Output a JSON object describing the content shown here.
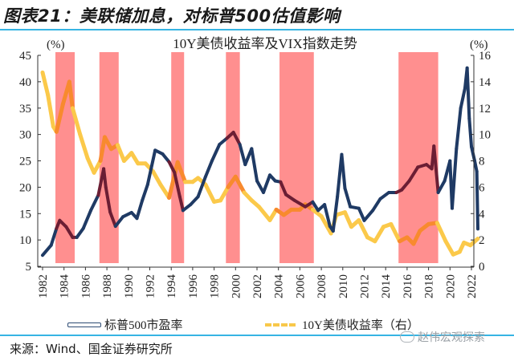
{
  "figure": {
    "title": "图表21：美联储加息，对标普500估值影响",
    "source": "来源：Wind、国金证券研究所",
    "watermark": "赵伟宏观探索"
  },
  "colors": {
    "pe_line": "#1f3a64",
    "pe_in_band": "#6b1e34",
    "yield_line": "#fbc94a",
    "yield_in_band": "#f88a2e",
    "hike_band": "#ff8f8f",
    "rule": "#36b4e3"
  },
  "chart_data": {
    "type": "line",
    "title": "10Y美债收益率及VIX指数走势",
    "left_axis": {
      "label": "(%)",
      "ylim": [
        5,
        45
      ],
      "ticks": [
        5,
        10,
        15,
        20,
        25,
        30,
        35,
        40,
        45
      ]
    },
    "right_axis": {
      "label": "(%)",
      "ylim": [
        0,
        16
      ],
      "ticks": [
        0,
        2,
        4,
        6,
        8,
        10,
        12,
        14,
        16
      ]
    },
    "x_axis": {
      "xlim": [
        1982,
        2022
      ],
      "ticks": [
        1982,
        1984,
        1986,
        1988,
        1990,
        1992,
        1994,
        1996,
        1998,
        2000,
        2002,
        2004,
        2006,
        2008,
        2010,
        2012,
        2014,
        2016,
        2018,
        2020,
        2022
      ]
    },
    "legend": {
      "placement": "bottom",
      "items": [
        "标普500市盈率",
        "10Y美债收益率（右）"
      ]
    },
    "hike_periods": [
      [
        1983.2,
        1985.0
      ],
      [
        1987.3,
        1989.1
      ],
      [
        1994.0,
        1995.2
      ],
      [
        1999.1,
        2000.4
      ],
      [
        2004.1,
        2007.3
      ],
      [
        2015.2,
        2018.9
      ]
    ],
    "series": [
      {
        "name": "标普500市盈率",
        "axis": "left",
        "points": [
          [
            1982.0,
            7.1
          ],
          [
            1982.8,
            9.0
          ],
          [
            1983.3,
            12.2
          ],
          [
            1983.6,
            13.7
          ],
          [
            1984.2,
            12.5
          ],
          [
            1984.8,
            10.5
          ],
          [
            1985.2,
            10.5
          ],
          [
            1985.8,
            12.2
          ],
          [
            1986.5,
            15.6
          ],
          [
            1987.2,
            18.5
          ],
          [
            1987.7,
            23.5
          ],
          [
            1987.9,
            20.0
          ],
          [
            1988.3,
            15.3
          ],
          [
            1988.8,
            12.6
          ],
          [
            1989.5,
            14.4
          ],
          [
            1990.3,
            15.2
          ],
          [
            1990.8,
            14.1
          ],
          [
            1991.3,
            17.5
          ],
          [
            1991.8,
            20.5
          ],
          [
            1992.5,
            27.0
          ],
          [
            1993.2,
            26.3
          ],
          [
            1993.8,
            24.8
          ],
          [
            1994.3,
            22.8
          ],
          [
            1994.8,
            18.2
          ],
          [
            1995.1,
            15.6
          ],
          [
            1995.8,
            16.7
          ],
          [
            1996.5,
            18.2
          ],
          [
            1997.2,
            22.0
          ],
          [
            1997.8,
            25.0
          ],
          [
            1998.5,
            28.1
          ],
          [
            1999.2,
            29.3
          ],
          [
            1999.8,
            30.4
          ],
          [
            2000.4,
            28.1
          ],
          [
            2000.9,
            24.3
          ],
          [
            2001.5,
            27.3
          ],
          [
            2002.0,
            21.2
          ],
          [
            2002.6,
            19.0
          ],
          [
            2003.2,
            22.3
          ],
          [
            2003.7,
            21.2
          ],
          [
            2004.2,
            21.0
          ],
          [
            2004.7,
            18.6
          ],
          [
            2005.5,
            17.5
          ],
          [
            2006.5,
            16.3
          ],
          [
            2007.2,
            17.2
          ],
          [
            2007.7,
            15.6
          ],
          [
            2008.3,
            16.7
          ],
          [
            2008.8,
            12.6
          ],
          [
            2009.1,
            11.7
          ],
          [
            2009.5,
            18.2
          ],
          [
            2009.9,
            26.2
          ],
          [
            2010.2,
            19.8
          ],
          [
            2010.7,
            16.3
          ],
          [
            2011.5,
            16.0
          ],
          [
            2012.0,
            13.7
          ],
          [
            2012.8,
            15.6
          ],
          [
            2013.5,
            17.8
          ],
          [
            2014.3,
            19.0
          ],
          [
            2015.0,
            19.0
          ],
          [
            2015.5,
            19.5
          ],
          [
            2016.2,
            21.2
          ],
          [
            2017.0,
            23.8
          ],
          [
            2017.8,
            24.3
          ],
          [
            2018.3,
            23.5
          ],
          [
            2018.5,
            27.8
          ],
          [
            2018.9,
            19.0
          ],
          [
            2019.5,
            21.2
          ],
          [
            2020.0,
            25.0
          ],
          [
            2020.2,
            16.0
          ],
          [
            2020.6,
            27.3
          ],
          [
            2021.0,
            35.0
          ],
          [
            2021.4,
            38.8
          ],
          [
            2021.6,
            42.6
          ],
          [
            2021.8,
            33.0
          ],
          [
            2022.0,
            27.7
          ],
          [
            2022.3,
            25.0
          ],
          [
            2022.5,
            23.0
          ],
          [
            2022.6,
            12.1
          ]
        ]
      },
      {
        "name": "10Y美债收益率（右）",
        "axis": "right",
        "points": [
          [
            1982.0,
            14.7
          ],
          [
            1982.5,
            13.0
          ],
          [
            1983.0,
            10.6
          ],
          [
            1983.3,
            10.2
          ],
          [
            1983.9,
            12.3
          ],
          [
            1984.5,
            14.0
          ],
          [
            1984.8,
            12.0
          ],
          [
            1985.5,
            10.0
          ],
          [
            1986.2,
            8.2
          ],
          [
            1986.8,
            7.1
          ],
          [
            1987.4,
            8.0
          ],
          [
            1987.8,
            9.8
          ],
          [
            1988.4,
            8.9
          ],
          [
            1989.0,
            9.2
          ],
          [
            1989.6,
            8.0
          ],
          [
            1990.3,
            8.6
          ],
          [
            1990.9,
            7.8
          ],
          [
            1991.6,
            7.8
          ],
          [
            1992.3,
            7.2
          ],
          [
            1993.0,
            6.2
          ],
          [
            1993.8,
            5.2
          ],
          [
            1994.6,
            7.9
          ],
          [
            1995.3,
            6.4
          ],
          [
            1996.0,
            6.4
          ],
          [
            1996.5,
            6.7
          ],
          [
            1997.2,
            6.2
          ],
          [
            1998.0,
            4.9
          ],
          [
            1998.6,
            5.0
          ],
          [
            1999.3,
            6.0
          ],
          [
            2000.0,
            6.8
          ],
          [
            2000.8,
            5.6
          ],
          [
            2001.5,
            5.0
          ],
          [
            2002.2,
            4.5
          ],
          [
            2003.2,
            3.5
          ],
          [
            2003.8,
            4.3
          ],
          [
            2004.5,
            3.9
          ],
          [
            2005.2,
            4.3
          ],
          [
            2006.0,
            4.3
          ],
          [
            2006.5,
            4.7
          ],
          [
            2007.2,
            4.3
          ],
          [
            2008.0,
            3.8
          ],
          [
            2008.9,
            2.5
          ],
          [
            2009.4,
            3.9
          ],
          [
            2010.2,
            4.1
          ],
          [
            2010.8,
            3.0
          ],
          [
            2011.5,
            3.5
          ],
          [
            2012.3,
            2.2
          ],
          [
            2013.0,
            1.9
          ],
          [
            2013.8,
            3.0
          ],
          [
            2014.5,
            3.2
          ],
          [
            2015.3,
            1.9
          ],
          [
            2016.0,
            2.2
          ],
          [
            2016.6,
            1.7
          ],
          [
            2017.2,
            2.7
          ],
          [
            2018.0,
            3.2
          ],
          [
            2018.8,
            3.3
          ],
          [
            2019.6,
            1.9
          ],
          [
            2020.3,
            0.9
          ],
          [
            2020.9,
            1.1
          ],
          [
            2021.3,
            1.8
          ],
          [
            2021.9,
            1.6
          ],
          [
            2022.6,
            2.1
          ]
        ]
      }
    ]
  }
}
